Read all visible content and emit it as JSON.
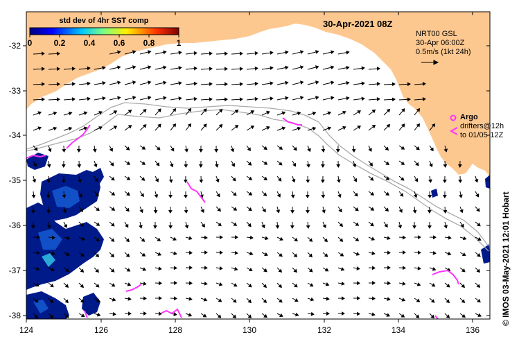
{
  "map": {
    "title": "30-Apr-2021 08Z",
    "colorbar": {
      "title": "std dev of 4hr SST comp",
      "ticks": [
        "0",
        "0.2",
        "0.4",
        "0.6",
        "0.8",
        "1"
      ]
    },
    "product": {
      "line1": "NRT00 GSL",
      "line2": "30-Apr 06:00Z",
      "line3": "0.5m/s (1kt 24h)"
    },
    "legend": {
      "argo": "Argo",
      "drifters_line1": "drifters@12h",
      "drifters_line2": "to 01/05-12Z"
    },
    "credit": "© IMOS 03-May-2021 12:01 Hobart",
    "lon_ticks": [
      "124",
      "126",
      "128",
      "130",
      "132",
      "134",
      "136"
    ],
    "lat_ticks": [
      "-32",
      "-33",
      "-34",
      "-35",
      "-36",
      "-37",
      "-38"
    ],
    "colors": {
      "land": "#fdc890",
      "sst_dark": "#001a8a",
      "sst_mid": "#1250c8",
      "sst_light": "#2aa8d8",
      "drifter": "#ff33ff",
      "contour": "#aaaaaa"
    }
  }
}
